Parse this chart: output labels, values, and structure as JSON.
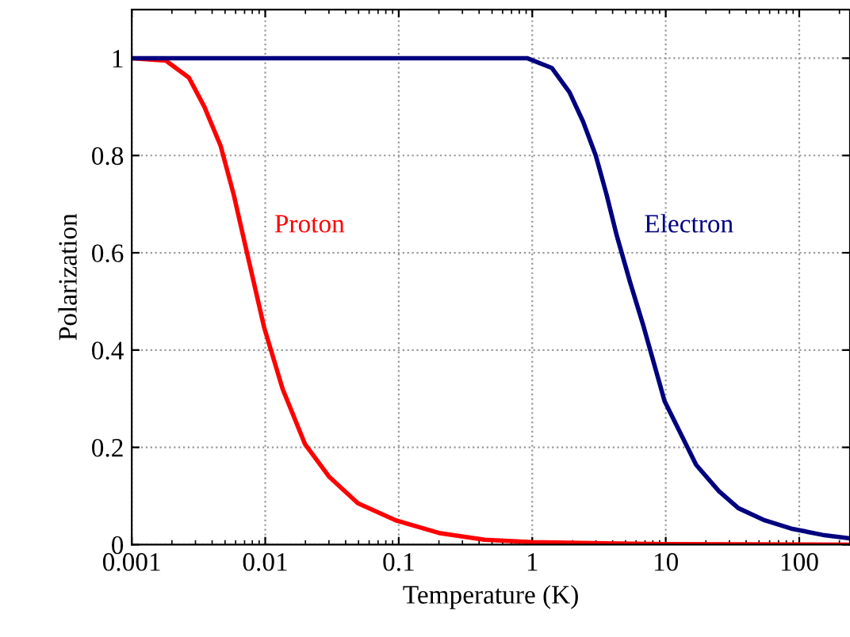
{
  "chart_data": {
    "type": "line",
    "xlabel": "Temperature (K)",
    "ylabel": "Polarization",
    "log": "x",
    "xlim": [
      0.001,
      240
    ],
    "ylim": [
      0,
      1.1
    ],
    "xticks": [
      0.001,
      0.01,
      0.1,
      1,
      10,
      100
    ],
    "yticks": [
      0,
      0.2,
      0.4,
      0.6,
      0.8,
      1
    ],
    "grid": true,
    "legend": false,
    "marker": "none",
    "line_style": "solid",
    "series": [
      {
        "name": "Proton",
        "color": "#ff0000",
        "x": [
          0.001,
          0.0018,
          0.00268,
          0.0035,
          0.00463,
          0.0058,
          0.0073,
          0.0098,
          0.0135,
          0.0199,
          0.03,
          0.0495,
          0.095,
          0.2,
          0.44,
          1,
          10,
          240
        ],
        "values": [
          1,
          0.995,
          0.96,
          0.9,
          0.82,
          0.72,
          0.6,
          0.447,
          0.32,
          0.206,
          0.14,
          0.085,
          0.05,
          0.024,
          0.01,
          0.005,
          0.001,
          0
        ]
      },
      {
        "name": "Electron",
        "color": "#00007f",
        "x": [
          0.001,
          0.1,
          0.915,
          1.4,
          1.9,
          2.4,
          2.99,
          3.6,
          4.3,
          5.4,
          6.8,
          9.8,
          16.9,
          25,
          35,
          55,
          87,
          150,
          240
        ],
        "values": [
          1,
          1,
          1,
          0.98,
          0.93,
          0.87,
          0.8,
          0.72,
          0.635,
          0.54,
          0.45,
          0.295,
          0.164,
          0.11,
          0.075,
          0.05,
          0.033,
          0.02,
          0.013
        ]
      }
    ]
  }
}
